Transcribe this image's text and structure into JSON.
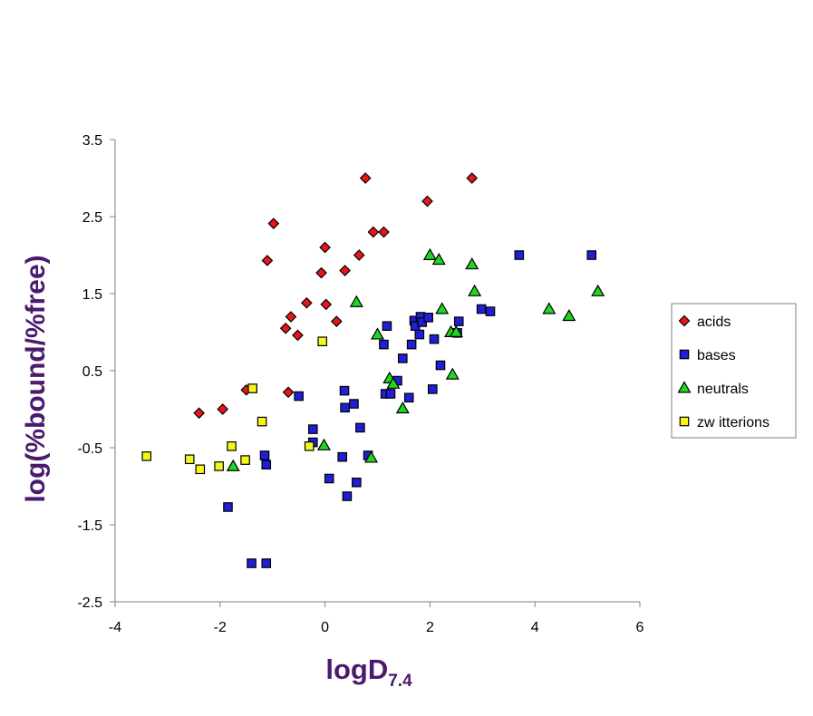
{
  "chart_data": {
    "type": "scatter",
    "xlabel": "logD",
    "xlabel_subscript": "7.4",
    "ylabel": "log(%bound/%free)",
    "xlim": [
      -4,
      6
    ],
    "ylim": [
      -2.5,
      3.5
    ],
    "x_ticks": [
      -4,
      -2,
      0,
      2,
      4,
      6
    ],
    "y_ticks": [
      -2.5,
      -1.5,
      -0.5,
      0.5,
      1.5,
      2.5,
      3.5
    ],
    "x_tick_labels": [
      "-4",
      "-2",
      "0",
      "2",
      "4",
      "6"
    ],
    "y_tick_labels": [
      "-2.5",
      "-1.5",
      "-0.5",
      "0.5",
      "1.5",
      "2.5",
      "3.5"
    ],
    "grid": false,
    "legend_position": "right",
    "series": [
      {
        "name": "acids",
        "marker": "diamond",
        "color": "#e8161b",
        "points": [
          [
            -2.4,
            -0.05
          ],
          [
            -1.95,
            0.0
          ],
          [
            -1.5,
            0.25
          ],
          [
            -0.7,
            0.22
          ],
          [
            -1.1,
            1.93
          ],
          [
            -0.98,
            2.41
          ],
          [
            -0.75,
            1.05
          ],
          [
            -0.65,
            1.2
          ],
          [
            -0.52,
            0.96
          ],
          [
            -0.35,
            1.38
          ],
          [
            -0.07,
            1.77
          ],
          [
            0.0,
            2.1
          ],
          [
            0.02,
            1.36
          ],
          [
            0.22,
            1.14
          ],
          [
            0.38,
            1.8
          ],
          [
            0.65,
            2.0
          ],
          [
            0.77,
            3.0
          ],
          [
            0.92,
            2.3
          ],
          [
            1.12,
            2.3
          ],
          [
            1.95,
            2.7
          ],
          [
            2.8,
            3.0
          ]
        ]
      },
      {
        "name": "bases",
        "marker": "square",
        "color": "#1f1fd6",
        "points": [
          [
            -1.85,
            -1.27
          ],
          [
            -1.4,
            -2.0
          ],
          [
            -1.12,
            -2.0
          ],
          [
            -1.15,
            -0.6
          ],
          [
            -1.12,
            -0.72
          ],
          [
            -0.5,
            0.17
          ],
          [
            -0.23,
            -0.26
          ],
          [
            -0.23,
            -0.43
          ],
          [
            0.08,
            -0.9
          ],
          [
            0.33,
            -0.62
          ],
          [
            0.37,
            0.24
          ],
          [
            0.38,
            0.02
          ],
          [
            0.42,
            -1.13
          ],
          [
            0.55,
            0.07
          ],
          [
            0.6,
            -0.95
          ],
          [
            0.67,
            -0.24
          ],
          [
            0.82,
            -0.6
          ],
          [
            1.12,
            0.84
          ],
          [
            1.18,
            1.08
          ],
          [
            1.15,
            0.2
          ],
          [
            1.25,
            0.2
          ],
          [
            1.38,
            0.37
          ],
          [
            1.48,
            0.66
          ],
          [
            1.6,
            0.15
          ],
          [
            1.65,
            0.84
          ],
          [
            1.7,
            1.15
          ],
          [
            1.72,
            1.08
          ],
          [
            1.8,
            0.97
          ],
          [
            1.82,
            1.2
          ],
          [
            1.85,
            1.13
          ],
          [
            1.97,
            1.19
          ],
          [
            2.05,
            0.26
          ],
          [
            2.08,
            0.91
          ],
          [
            2.2,
            0.57
          ],
          [
            2.52,
            0.99
          ],
          [
            2.55,
            1.14
          ],
          [
            2.98,
            1.3
          ],
          [
            3.15,
            1.27
          ],
          [
            3.7,
            2.0
          ],
          [
            5.08,
            2.0
          ]
        ]
      },
      {
        "name": "neutrals",
        "marker": "triangle",
        "color": "#1fd61f",
        "points": [
          [
            -1.75,
            -0.74
          ],
          [
            -0.02,
            -0.47
          ],
          [
            0.6,
            1.39
          ],
          [
            0.88,
            -0.63
          ],
          [
            1.0,
            0.97
          ],
          [
            1.23,
            0.4
          ],
          [
            1.3,
            0.33
          ],
          [
            1.48,
            0.01
          ],
          [
            2.0,
            2.0
          ],
          [
            2.17,
            1.94
          ],
          [
            2.23,
            1.3
          ],
          [
            2.4,
            1.0
          ],
          [
            2.43,
            0.45
          ],
          [
            2.5,
            1.0
          ],
          [
            2.8,
            1.88
          ],
          [
            2.85,
            1.53
          ],
          [
            4.27,
            1.3
          ],
          [
            4.65,
            1.21
          ],
          [
            5.2,
            1.53
          ]
        ]
      },
      {
        "name": "zw itterions",
        "marker": "square",
        "color": "#f6f61a",
        "points": [
          [
            -3.4,
            -0.61
          ],
          [
            -2.58,
            -0.65
          ],
          [
            -2.38,
            -0.78
          ],
          [
            -2.02,
            -0.74
          ],
          [
            -1.78,
            -0.48
          ],
          [
            -1.52,
            -0.66
          ],
          [
            -1.38,
            0.27
          ],
          [
            -1.2,
            -0.16
          ],
          [
            -0.3,
            -0.48
          ],
          [
            -0.05,
            0.88
          ]
        ]
      }
    ]
  }
}
